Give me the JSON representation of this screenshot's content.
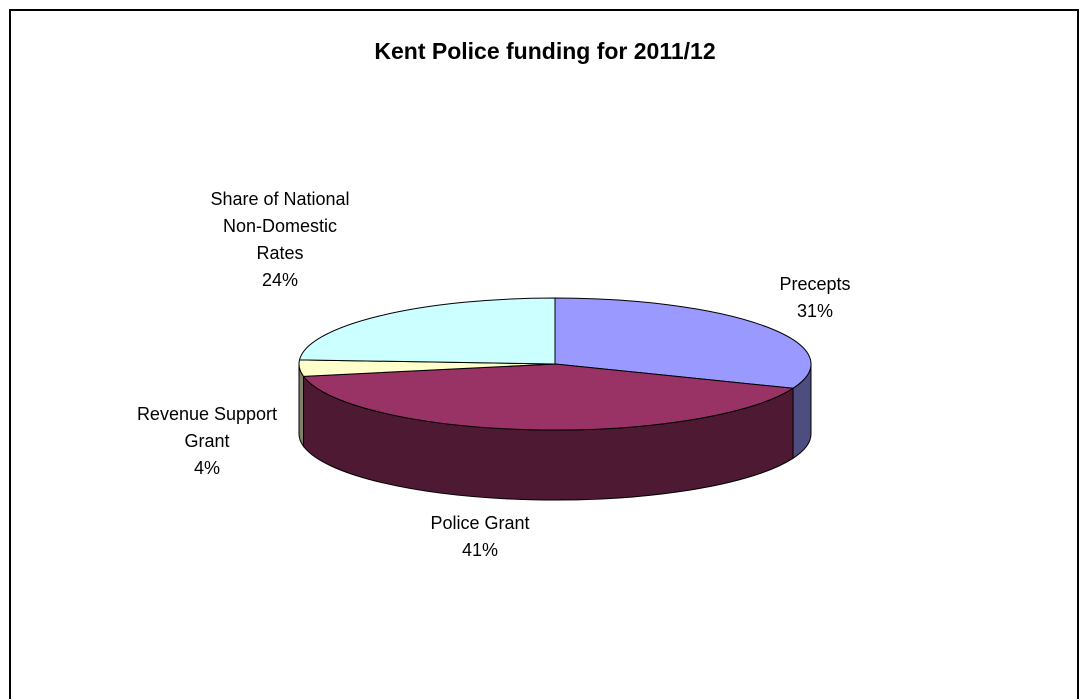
{
  "chart_data": {
    "type": "pie",
    "title": "Kent Police funding for 2011/12",
    "categories": [
      "Precepts",
      "Police Grant",
      "Revenue Support Grant",
      "Share of National Non-Domestic Rates"
    ],
    "values": [
      31,
      41,
      4,
      24
    ],
    "unit": "%",
    "labels": [
      {
        "lines": [
          "Precepts"
        ],
        "pct": "31%"
      },
      {
        "lines": [
          "Police Grant"
        ],
        "pct": "41%"
      },
      {
        "lines": [
          "Revenue Support",
          "Grant"
        ],
        "pct": "4%"
      },
      {
        "lines": [
          "Share of National",
          "Non-Domestic",
          "Rates"
        ],
        "pct": "24%"
      }
    ],
    "colors": [
      "#9999ff",
      "#993366",
      "#ffffcc",
      "#ccffff"
    ],
    "side_colors": [
      "#4d4d80",
      "#4d1933",
      "#808066",
      "#668080"
    ],
    "legend": "none"
  }
}
